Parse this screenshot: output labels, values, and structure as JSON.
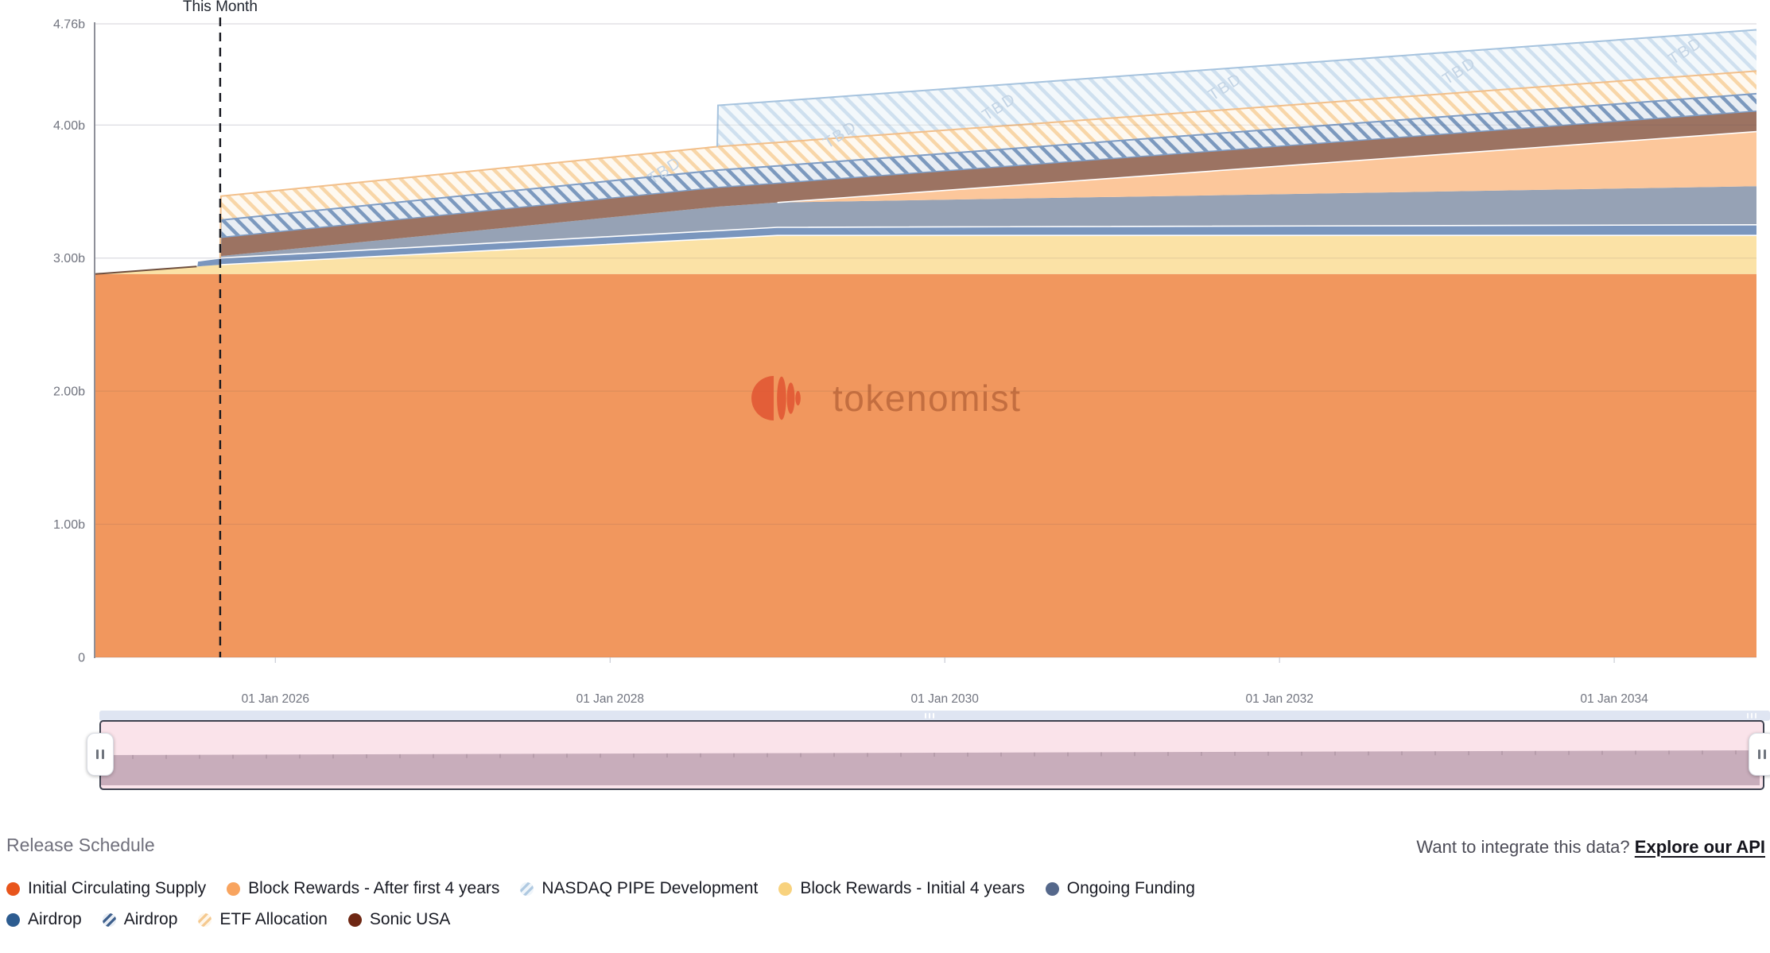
{
  "watermark": {
    "text": "tokenomist"
  },
  "footer": {
    "section_title": "Release Schedule",
    "api_prompt": "Want to integrate this data?",
    "api_link": "Explore our API"
  },
  "legend": {
    "rows": [
      [
        {
          "label": "Initial Circulating Supply",
          "marker": "dot",
          "color": "#E8551C"
        },
        {
          "label": "Block Rewards - After first 4 years",
          "marker": "dot",
          "color": "#F8A45F"
        },
        {
          "label": "NASDAQ PIPE Development",
          "marker": "hatch",
          "color": "#AFC9E1",
          "bg": "#EFF5FA"
        },
        {
          "label": "Block Rewards - Initial 4 years",
          "marker": "dot",
          "color": "#F8D27E"
        },
        {
          "label": "Ongoing Funding",
          "marker": "dot",
          "color": "#55688B"
        }
      ],
      [
        {
          "label": "Airdrop",
          "marker": "dot",
          "color": "#2D5C90"
        },
        {
          "label": "Airdrop",
          "marker": "hatch",
          "color": "#3D5F8C",
          "bg": "#E8EDF4"
        },
        {
          "label": "ETF Allocation",
          "marker": "hatch",
          "color": "#F5C98F",
          "bg": "#FEF6EA"
        },
        {
          "label": "Sonic USA",
          "marker": "dot",
          "color": "#6E2713"
        }
      ]
    ]
  },
  "minimap": {
    "track_color": "#DFE5F2",
    "selection_top_color": "#FAE3EA",
    "area_color": "#C8ADBB",
    "border_color": "#3E4250"
  },
  "chart_data": {
    "type": "area",
    "stacked": true,
    "x_range": [
      2024.92,
      2034.85
    ],
    "y_range": [
      0,
      4.76
    ],
    "x_ticks": [
      {
        "t": 2026,
        "label": "01 Jan 2026"
      },
      {
        "t": 2028,
        "label": "01 Jan 2028"
      },
      {
        "t": 2030,
        "label": "01 Jan 2030"
      },
      {
        "t": 2032,
        "label": "01 Jan 2032"
      },
      {
        "t": 2034,
        "label": "01 Jan 2034"
      }
    ],
    "y_ticks": [
      {
        "v": 4.76,
        "label": "4.76b"
      },
      {
        "v": 4,
        "label": "4.00b"
      },
      {
        "v": 3,
        "label": "3.00b"
      },
      {
        "v": 2,
        "label": "2.00b"
      },
      {
        "v": 1,
        "label": "1.00b"
      },
      {
        "v": 0,
        "label": "0"
      }
    ],
    "now_marker": {
      "t": 2025.67,
      "label": "This Month"
    },
    "tbd_watermarks": {
      "label": "TBD",
      "positions": [
        [
          2028.25,
          3.55
        ],
        [
          2029.3,
          3.82
        ],
        [
          2030.25,
          4.03
        ],
        [
          2031.6,
          4.18
        ],
        [
          2033.0,
          4.3
        ],
        [
          2034.35,
          4.45
        ]
      ]
    },
    "pre_now_topline_color": "#5F3D2E",
    "series": [
      {
        "key": "initial_circulating_supply",
        "label": "Initial Circulating Supply",
        "style": "solid",
        "fill": "#F1975E",
        "points": [
          [
            2024.92,
            2.88
          ],
          [
            2034.85,
            2.88
          ]
        ]
      },
      {
        "key": "block_rewards_initial_4_years",
        "label": "Block Rewards - Initial 4 years",
        "style": "solid",
        "fill": "#FBE2A6",
        "top_stroke": "#FFFFFF",
        "top_stroke_from": 2025.67,
        "points": [
          [
            2024.92,
            0
          ],
          [
            2025.67,
            0.07
          ],
          [
            2029.0,
            0.29
          ],
          [
            2034.85,
            0.29
          ]
        ]
      },
      {
        "key": "airdrop",
        "label": "Airdrop",
        "style": "solid",
        "fill": "#7A96BE",
        "top_stroke": "#FFFFFF",
        "points": [
          [
            2024.92,
            0
          ],
          [
            2025.53,
            0
          ],
          [
            2025.535,
            0.04
          ],
          [
            2025.67,
            0.05
          ],
          [
            2034.85,
            0.08
          ]
        ]
      },
      {
        "key": "ongoing_funding",
        "label": "Ongoing Funding",
        "style": "solid",
        "fill": "#96A2B5",
        "points": [
          [
            2024.92,
            0
          ],
          [
            2025.67,
            0
          ],
          [
            2025.675,
            0.015
          ],
          [
            2028.64,
            0.18
          ],
          [
            2034.85,
            0.29
          ]
        ]
      },
      {
        "key": "block_rewards_after_4_years",
        "label": "Block Rewards - After first 4 years",
        "style": "solid",
        "fill": "#FCC79B",
        "top_stroke": "#FFFFFF",
        "points": [
          [
            2024.92,
            0
          ],
          [
            2029.0,
            0
          ],
          [
            2034.85,
            0.41
          ]
        ]
      },
      {
        "key": "sonic_usa",
        "label": "Sonic USA",
        "style": "solid",
        "fill": "#9C7362",
        "points": [
          [
            2024.92,
            0
          ],
          [
            2025.67,
            0
          ],
          [
            2025.675,
            0.14
          ],
          [
            2034.85,
            0.155
          ]
        ]
      },
      {
        "key": "airdrop_tbd",
        "label": "Airdrop",
        "style": "hatch",
        "fill": "#E9EEF4",
        "stripe": "#7C99BE",
        "line": "#7E9CC4",
        "bottom_line": true,
        "points": [
          [
            2024.92,
            0
          ],
          [
            2025.67,
            0
          ],
          [
            2025.675,
            0.13
          ],
          [
            2034.85,
            0.13
          ]
        ]
      },
      {
        "key": "etf_allocation",
        "label": "ETF Allocation",
        "style": "hatch",
        "fill": "#FEF9F1",
        "stripe": "#F8D6A8",
        "line": "#F2BF8A",
        "points": [
          [
            2024.92,
            0
          ],
          [
            2025.67,
            0
          ],
          [
            2025.675,
            0.18
          ],
          [
            2034.85,
            0.17
          ]
        ]
      },
      {
        "key": "nasdaq_pipe_development",
        "label": "NASDAQ PIPE Development",
        "style": "hatch",
        "fill": "#F3F8FB",
        "stripe": "#CFE0EF",
        "line": "#A6C3DE",
        "points": [
          [
            2024.92,
            0
          ],
          [
            2028.64,
            0
          ],
          [
            2028.645,
            0.31
          ],
          [
            2034.85,
            0.31
          ]
        ]
      }
    ]
  }
}
